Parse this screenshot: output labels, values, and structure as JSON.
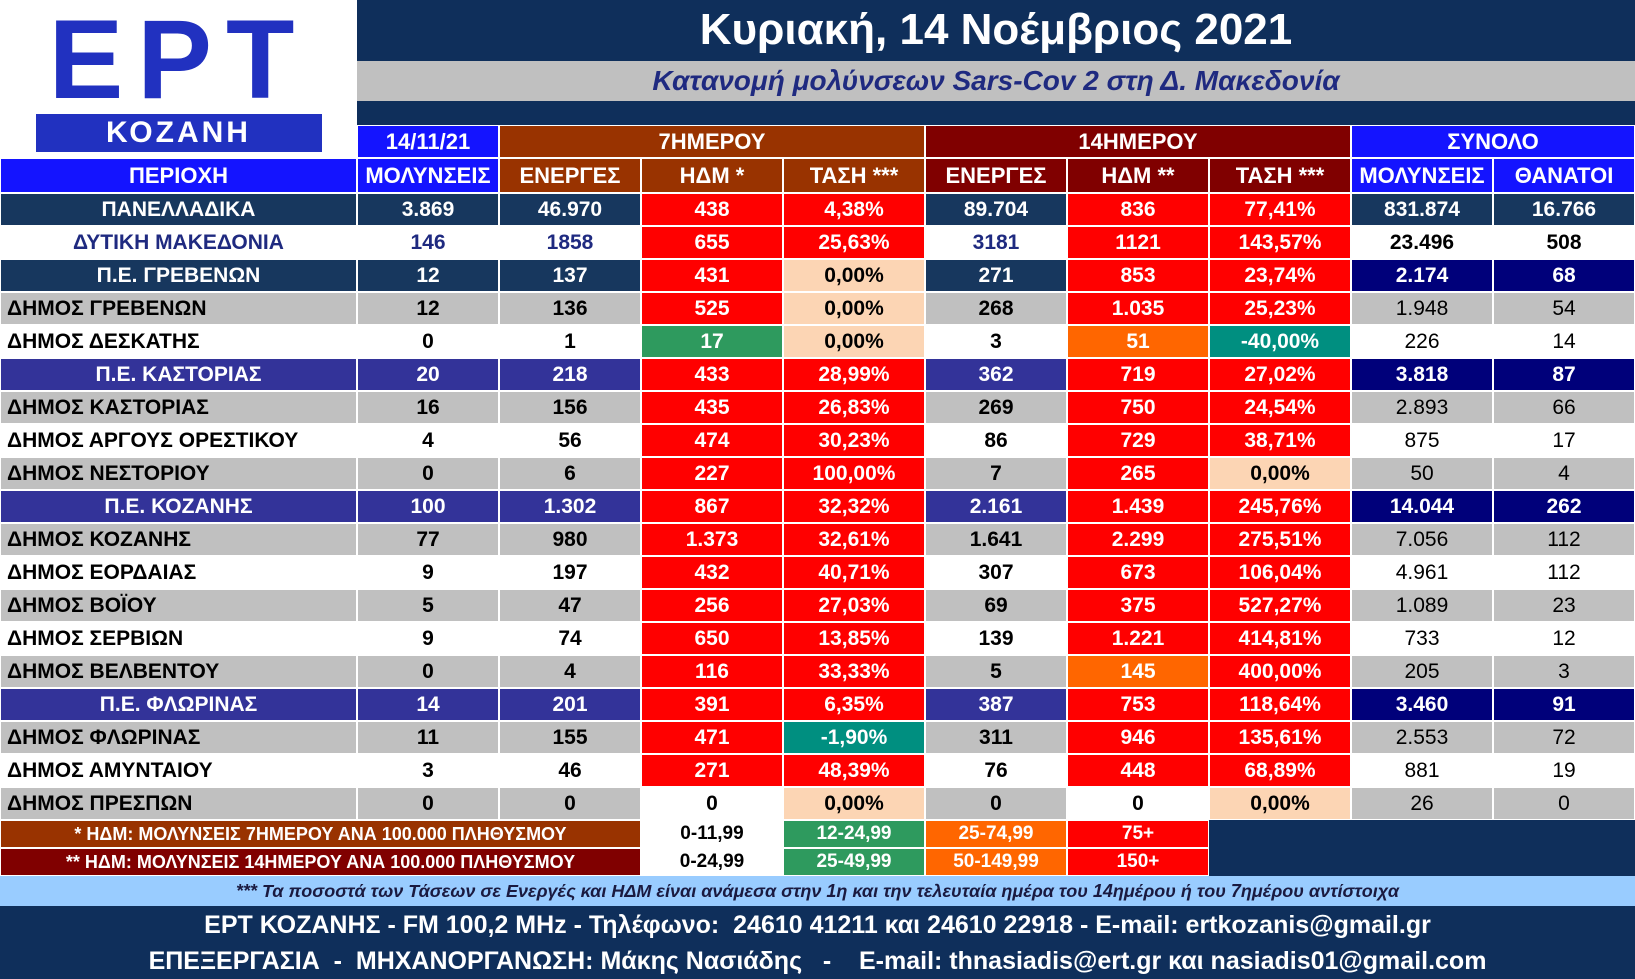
{
  "logo": {
    "title": "ΕΡΤ",
    "subtitle": "ΚΟΖΑΝΗ"
  },
  "header": {
    "title": "Κυριακή, 14 Νοέμβριος 2021",
    "subtitle": "Κατανομή μολύνσεων Sars-Cov 2 στη Δ. Μακεδονία"
  },
  "table": {
    "group_headers": [
      "14/11/21",
      "7ΗΜΕΡΟΥ",
      "14ΗΜΕΡΟΥ",
      "ΣΥΝΟΛΟ"
    ],
    "columns": [
      "ΠΕΡΙΟΧΗ",
      "ΜΟΛΥΝΣΕΙΣ",
      "ΕΝΕΡΓΕΣ",
      "ΗΔΜ *",
      "ΤΑΣΗ ***",
      "ΕΝΕΡΓΕΣ",
      "ΗΔΜ **",
      "ΤΑΣΗ ***",
      "ΜΟΛΥΝΣΕΙΣ",
      "ΘΑΝΑΤΟΙ"
    ],
    "rows": [
      [
        "ΠΑΝΕΛΛΑΔΙΚΑ",
        "3.869",
        "46.970",
        "438",
        "4,38%",
        "89.704",
        "836",
        "77,41%",
        "831.874",
        "16.766"
      ],
      [
        "ΔΥΤΙΚΗ ΜΑΚΕΔΟΝΙΑ",
        "146",
        "1858",
        "655",
        "25,63%",
        "3181",
        "1121",
        "143,57%",
        "23.496",
        "508"
      ],
      [
        "Π.Ε. ΓΡΕΒΕΝΩΝ",
        "12",
        "137",
        "431",
        "0,00%",
        "271",
        "853",
        "23,74%",
        "2.174",
        "68"
      ],
      [
        "ΔΗΜΟΣ ΓΡΕΒΕΝΩΝ",
        "12",
        "136",
        "525",
        "0,00%",
        "268",
        "1.035",
        "25,23%",
        "1.948",
        "54"
      ],
      [
        "ΔΗΜΟΣ ΔΕΣΚΑΤΗΣ",
        "0",
        "1",
        "17",
        "0,00%",
        "3",
        "51",
        "-40,00%",
        "226",
        "14"
      ],
      [
        "Π.Ε. ΚΑΣΤΟΡΙΑΣ",
        "20",
        "218",
        "433",
        "28,99%",
        "362",
        "719",
        "27,02%",
        "3.818",
        "87"
      ],
      [
        "ΔΗΜΟΣ ΚΑΣΤΟΡΙΑΣ",
        "16",
        "156",
        "435",
        "26,83%",
        "269",
        "750",
        "24,54%",
        "2.893",
        "66"
      ],
      [
        "ΔΗΜΟΣ ΑΡΓΟΥΣ ΟΡΕΣΤΙΚΟΥ",
        "4",
        "56",
        "474",
        "30,23%",
        "86",
        "729",
        "38,71%",
        "875",
        "17"
      ],
      [
        "ΔΗΜΟΣ ΝΕΣΤΟΡΙΟΥ",
        "0",
        "6",
        "227",
        "100,00%",
        "7",
        "265",
        "0,00%",
        "50",
        "4"
      ],
      [
        "Π.Ε. ΚΟΖΑΝΗΣ",
        "100",
        "1.302",
        "867",
        "32,32%",
        "2.161",
        "1.439",
        "245,76%",
        "14.044",
        "262"
      ],
      [
        "ΔΗΜΟΣ ΚΟΖΑΝΗΣ",
        "77",
        "980",
        "1.373",
        "32,61%",
        "1.641",
        "2.299",
        "275,51%",
        "7.056",
        "112"
      ],
      [
        "ΔΗΜΟΣ ΕΟΡΔΑΙΑΣ",
        "9",
        "197",
        "432",
        "40,71%",
        "307",
        "673",
        "106,04%",
        "4.961",
        "112"
      ],
      [
        "ΔΗΜΟΣ ΒΟΪΟΥ",
        "5",
        "47",
        "256",
        "27,03%",
        "69",
        "375",
        "527,27%",
        "1.089",
        "23"
      ],
      [
        "ΔΗΜΟΣ ΣΕΡΒΙΩΝ",
        "9",
        "74",
        "650",
        "13,85%",
        "139",
        "1.221",
        "414,81%",
        "733",
        "12"
      ],
      [
        "ΔΗΜΟΣ ΒΕΛΒΕΝΤΟΥ",
        "0",
        "4",
        "116",
        "33,33%",
        "5",
        "145",
        "400,00%",
        "205",
        "3"
      ],
      [
        "Π.Ε. ΦΛΩΡΙΝΑΣ",
        "14",
        "201",
        "391",
        "6,35%",
        "387",
        "753",
        "118,64%",
        "3.460",
        "91"
      ],
      [
        "ΔΗΜΟΣ ΦΛΩΡΙΝΑΣ",
        "11",
        "155",
        "471",
        "-1,90%",
        "311",
        "946",
        "135,61%",
        "2.553",
        "72"
      ],
      [
        "ΔΗΜΟΣ ΑΜΥΝΤΑΙΟΥ",
        "3",
        "46",
        "271",
        "48,39%",
        "76",
        "448",
        "68,89%",
        "881",
        "19"
      ],
      [
        "ΔΗΜΟΣ ΠΡΕΣΠΩΝ",
        "0",
        "0",
        "0",
        "0,00%",
        "0",
        "0",
        "0,00%",
        "26",
        "0"
      ]
    ]
  },
  "legend": {
    "rows": [
      [
        "* ΗΔΜ: ΜΟΛΥΝΣΕΙΣ 7ΗΜΕΡΟΥ ΑΝΑ 100.000 ΠΛΗΘΥΣΜΟΥ",
        "0-11,99",
        "12-24,99",
        "25-74,99",
        "75+"
      ],
      [
        "** ΗΔΜ: ΜΟΛΥΝΣΕΙΣ 14ΗΜΕΡΟΥ ΑΝΑ 100.000 ΠΛΗΘΥΣΜΟΥ",
        "0-24,99",
        "25-49,99",
        "50-149,99",
        "150+"
      ]
    ]
  },
  "note": "*** Τα ποσοστά των Τάσεων σε Ενεργές και ΗΔΜ είναι ανάμεσα στην 1η και την τελευταία ημέρα του 14ημέρου ή του 7ημέρου αντίστοιχα",
  "footer": [
    "ΕΡΤ ΚΟΖΑΝΗΣ - FM 100,2 MHz - Τηλέφωνο:  24610 41211 και 24610 22918 - E-mail: ertkozanis@gmail.gr",
    "ΕΠΕΞΕΡΓΑΣΙΑ  -  ΜΗΧΑΝΟΡΓΑΝΩΣΗ: Μάκης Νασιάδης   -    E-mail: thnasiadis@ert.gr και nasiadis01@gmail.com"
  ]
}
